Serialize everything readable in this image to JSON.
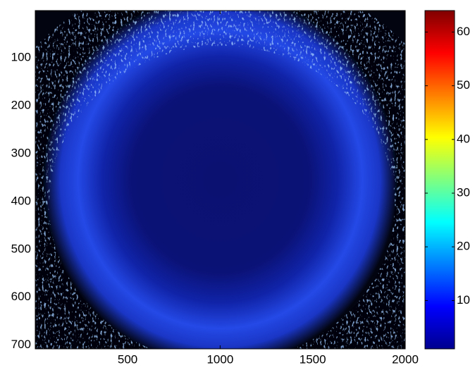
{
  "chart_data": {
    "type": "heatmap",
    "xlim": [
      1,
      2000
    ],
    "xticks": [
      500,
      1000,
      1500,
      2000
    ],
    "ylim": [
      1,
      708
    ],
    "yticks": [
      100,
      200,
      300,
      400,
      500,
      600,
      700
    ],
    "y_reversed": true,
    "colorbar": {
      "clim": [
        1,
        64
      ],
      "ticks": [
        10,
        20,
        30,
        40,
        50,
        60
      ],
      "colormap": "jet"
    }
  }
}
